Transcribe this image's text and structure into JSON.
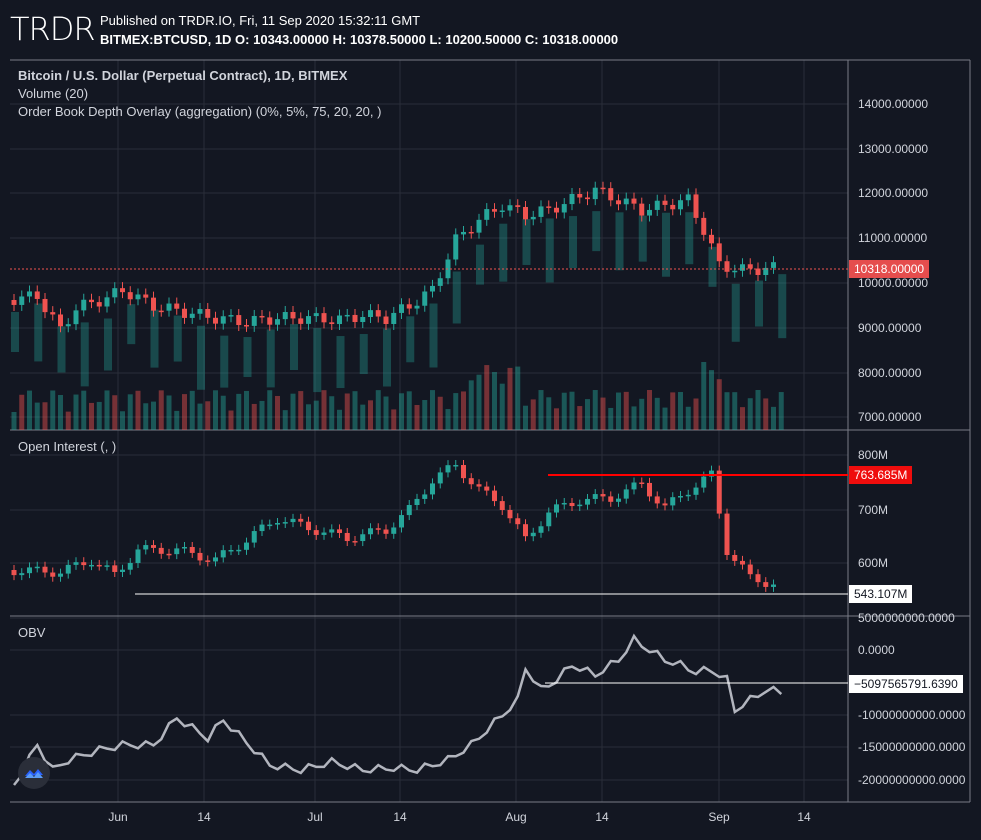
{
  "header": {
    "logo_text": "TRDR",
    "published_line": "Published on TRDR.IO, Fri, 11 Sep 2020 15:32:11 GMT",
    "ohlc_line": "BITMEX:BTCUSD, 1D O: 10343.00000 H: 10378.50000 L: 10200.50000 C: 10318.00000"
  },
  "main_pane": {
    "title": "Bitcoin / U.S. Dollar (Perpetual Contract), 1D, BITMEX",
    "volume_label": "Volume (20)",
    "overlay_label": "Order Book Depth Overlay (aggregation) (0%, 5%, 75, 20, 20, )",
    "y_axis": [
      "14000.00000",
      "13000.00000",
      "12000.00000",
      "11000.00000",
      "10000.00000",
      "9000.00000",
      "8000.00000",
      "7000.00000"
    ],
    "last_price_tag": "10318.00000"
  },
  "oi_pane": {
    "title": "Open Interest (, )",
    "y_axis": [
      "800M",
      "700M",
      "600M"
    ],
    "high_tag": "763.685M",
    "low_tag": "543.107M"
  },
  "obv_pane": {
    "title": "OBV",
    "y_axis": [
      "5000000000.0000",
      "0.0000",
      "-10000000000.0000",
      "-15000000000.0000",
      "-20000000000.0000"
    ],
    "value_tag": "−5097565791.6390"
  },
  "x_axis": [
    "Jun",
    "14",
    "Jul",
    "14",
    "Aug",
    "14",
    "Sep",
    "14"
  ],
  "colors": {
    "background": "#131722",
    "up": "#26a69a",
    "down": "#ef5350",
    "grid": "#2a2e39",
    "obv_line": "#b2b5be"
  },
  "icons": {
    "brand": "tradingview-logo-icon"
  }
}
